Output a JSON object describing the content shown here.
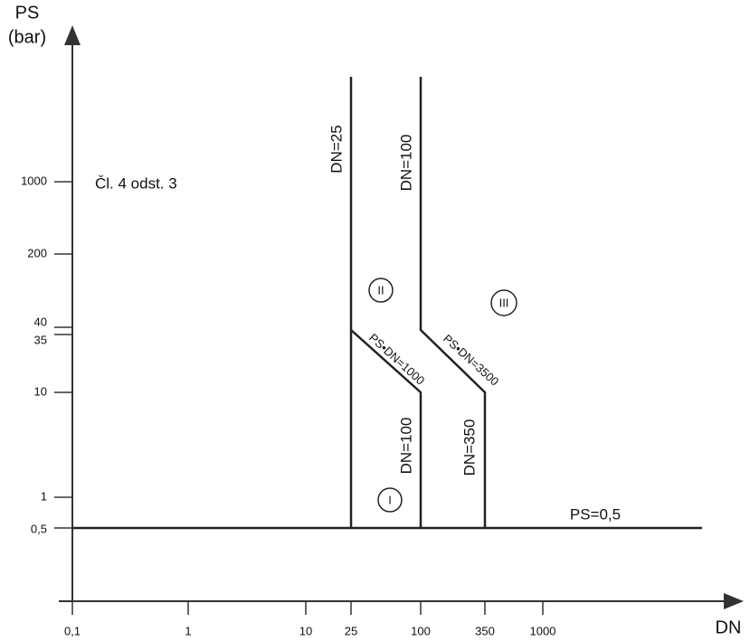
{
  "axes": {
    "y_label": "PS",
    "y_unit": "(bar)",
    "x_label": "DN",
    "y_ticks": [
      "1000",
      "200",
      "40",
      "35",
      "10",
      "1",
      "0,5"
    ],
    "x_ticks": [
      "0,1",
      "1",
      "10",
      "25",
      "100",
      "350",
      "1000"
    ]
  },
  "annotations": {
    "article": "Čl. 4 odst. 3",
    "ps_min": "PS=0,5",
    "dn25": "DN=25",
    "dn100_top": "DN=100",
    "dn100_bottom": "DN=100",
    "dn350": "DN=350",
    "ps_dn_1000": "PS•DN=1000",
    "ps_dn_3500": "PS•DN=3500"
  },
  "categories": [
    "I",
    "II",
    "III"
  ]
}
